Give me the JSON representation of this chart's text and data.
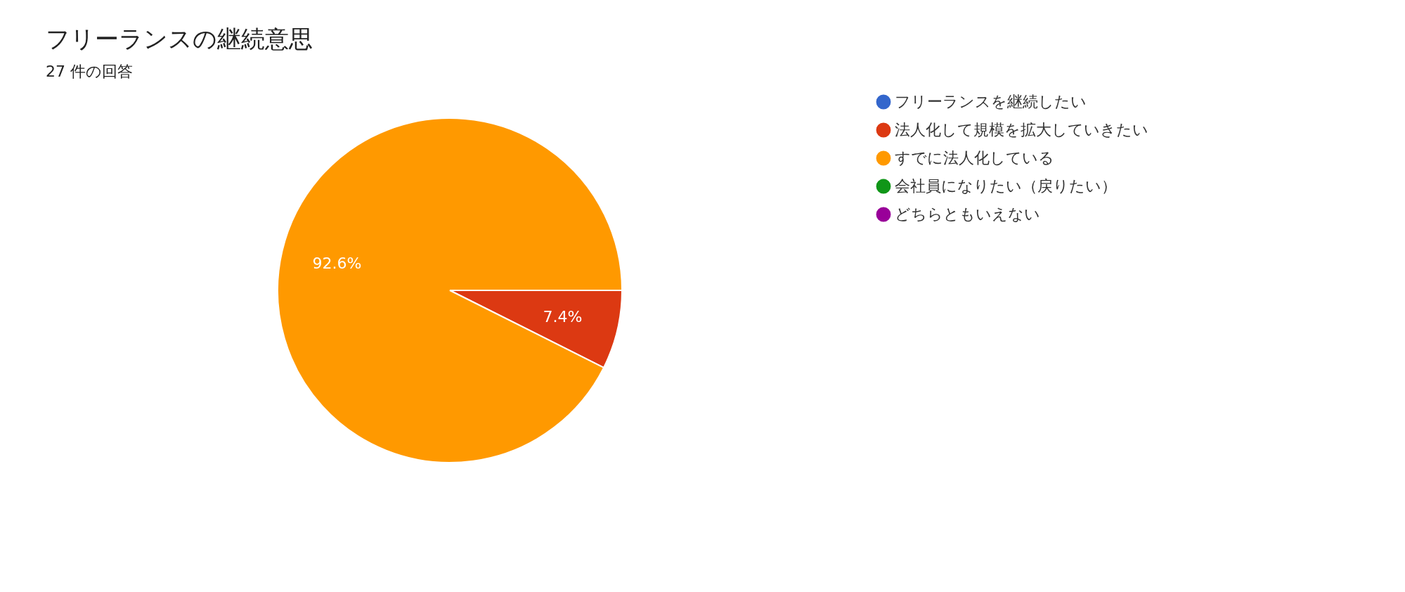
{
  "chart_data": {
    "type": "pie",
    "title": "フリーランスの継続意思",
    "subtitle": "27 件の回答",
    "categories": [
      "フリーランスを継続したい",
      "法人化して規模を拡大していきたい",
      "すでに法人化している",
      "会社員になりたい（戻りたい）",
      "どちらともいえない"
    ],
    "values": [
      0,
      7.4,
      92.6,
      0,
      0
    ],
    "colors": [
      "#3366cc",
      "#dc3912",
      "#ff9900",
      "#109618",
      "#990099"
    ],
    "value_labels": [
      null,
      "7.4%",
      "92.6%",
      null,
      null
    ],
    "legend": "right"
  }
}
